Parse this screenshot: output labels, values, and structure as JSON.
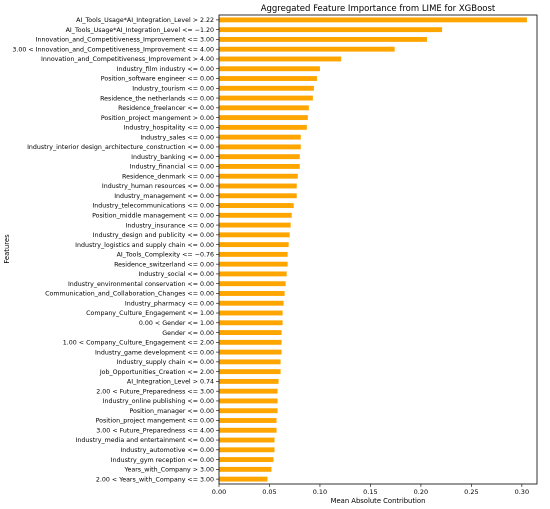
{
  "chart_data": {
    "type": "bar",
    "orientation": "horizontal",
    "title": "Aggregated Feature Importance from LIME for XGBoost",
    "xlabel": "Mean Absolute Contribution",
    "ylabel": "Features",
    "xlim": [
      0,
      0.315
    ],
    "xticks": [
      "0.00",
      "0.05",
      "0.10",
      "0.15",
      "0.20",
      "0.25",
      "0.30"
    ],
    "grid": false,
    "legend": "none",
    "bar_color": "#FFA500",
    "categories": [
      "AI_Tools_Usage*AI_Integration_Level > 2.22",
      "AI_Tools_Usage*AI_Integration_Level <= −1.20",
      "Innovation_and_Competitiveness_Improvement <= 3.00",
      "3.00 < Innovation_and_Competitiveness_Improvement <= 4.00",
      "Innovation_and_Competitiveness_Improvement > 4.00",
      "Industry_film industry <= 0.00",
      "Position_software engineer <= 0.00",
      "Industry_tourism <= 0.00",
      "Residence_the netherlands <= 0.00",
      "Residence_freelancer <= 0.00",
      "Position_project mangement > 0.00",
      "Industry_hospitality <= 0.00",
      "Industry_sales <= 0.00",
      "Industry_interior design_architecture_construction <= 0.00",
      "Industry_banking <= 0.00",
      "Industry_financial <= 0.00",
      "Residence_denmark <= 0.00",
      "Industry_human resources <= 0.00",
      "Industry_management <= 0.00",
      "Industry_telecommunications <= 0.00",
      "Position_middle management <= 0.00",
      "Industry_insurance <= 0.00",
      "Industry_design and publicity <= 0.00",
      "Industry_logistics and supply chain <= 0.00",
      "AI_Tools_Complexity <= −0.76",
      "Residence_switzerland <= 0.00",
      "Industry_social <= 0.00",
      "Industry_environmental conservation <= 0.00",
      "Communication_and_Collaboration_Changes <= 0.00",
      "Industry_pharmacy <= 0.00",
      "Company_Culture_Engagement <= 1.00",
      "0.00 < Gender <= 1.00",
      "Gender <= 0.00",
      "1.00 < Company_Culture_Engagement <= 2.00",
      "Industry_game development <= 0.00",
      "Industry_supply chain <= 0.00",
      "Job_Opportunities_Creation <= 2.00",
      "AI_Integration_Level > 0.74",
      "2.00 < Future_Preparedness <= 3.00",
      "Industry_online publishing <= 0.00",
      "Position_manager <= 0.00",
      "Position_project mangement <= 0.00",
      "3.00 < Future_Preparedness <= 4.00",
      "Industry_media and entertainment <= 0.00",
      "Industry_automotive <= 0.00",
      "Industry_gym reception <= 0.00",
      "Years_with_Company > 3.00",
      "2.00 < Years_with_Company <= 3.00"
    ],
    "values": [
      0.305,
      0.221,
      0.206,
      0.174,
      0.121,
      0.1,
      0.097,
      0.094,
      0.093,
      0.089,
      0.088,
      0.087,
      0.081,
      0.081,
      0.08,
      0.08,
      0.078,
      0.077,
      0.077,
      0.074,
      0.072,
      0.071,
      0.07,
      0.069,
      0.068,
      0.068,
      0.067,
      0.066,
      0.065,
      0.064,
      0.063,
      0.063,
      0.062,
      0.062,
      0.062,
      0.061,
      0.061,
      0.059,
      0.058,
      0.058,
      0.058,
      0.057,
      0.057,
      0.055,
      0.055,
      0.054,
      0.052,
      0.048
    ]
  }
}
